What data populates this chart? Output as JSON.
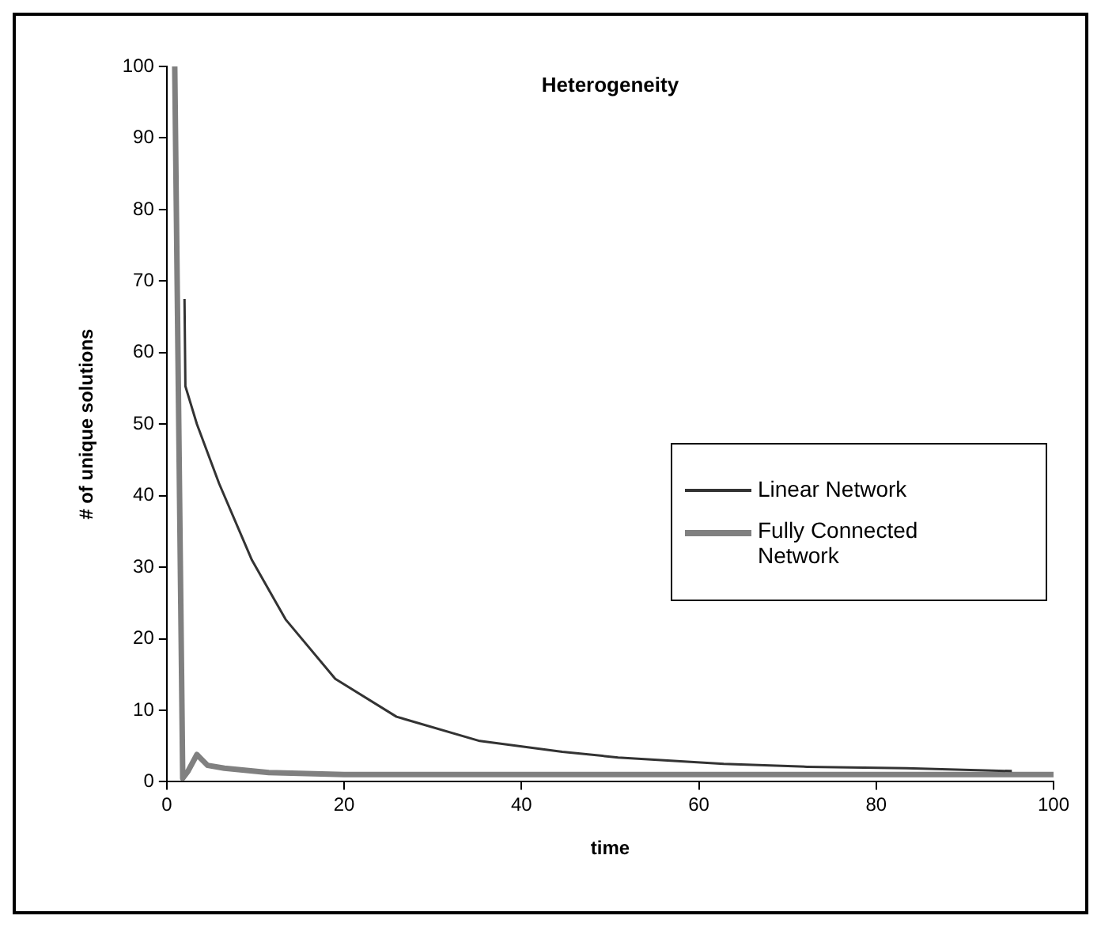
{
  "chart_data": {
    "type": "line",
    "title": "Heterogeneity",
    "xlabel": "time",
    "ylabel": "# of unique solutions",
    "xlim": [
      0,
      100
    ],
    "xticks": [
      0,
      20,
      40,
      60,
      80,
      100
    ],
    "ylim": [
      0,
      100
    ],
    "yticks": [
      0,
      10,
      20,
      30,
      40,
      50,
      60,
      70,
      80,
      90,
      100
    ],
    "grid": false,
    "legend": "right",
    "marker": "none",
    "line_style": "solid",
    "series": [
      {
        "name": "Linear Network",
        "color": "#333333",
        "x": [
          2,
          2.1,
          3.4,
          5.9,
          9.6,
          13.4,
          19,
          25.9,
          35.3,
          44.6,
          50.9,
          62.8,
          72.2,
          83.4,
          95.3
        ],
        "values": [
          67.5,
          55.3,
          50,
          41.7,
          31,
          22.7,
          14.4,
          9.1,
          5.7,
          4.2,
          3.4,
          2.5,
          2.1,
          1.9,
          1.5
        ]
      },
      {
        "name": "Fully Connected Network",
        "color": "#808080",
        "x": [
          0.9,
          1.8,
          2.4,
          3.4,
          4.6,
          6.5,
          11.5,
          20,
          40,
          60,
          80,
          100
        ],
        "values": [
          100,
          0.5,
          1.5,
          3.8,
          2.3,
          1.9,
          1.3,
          1,
          1,
          1,
          1,
          1
        ]
      }
    ]
  }
}
